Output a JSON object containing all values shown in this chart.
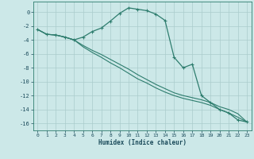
{
  "xlabel": "Humidex (Indice chaleur)",
  "background_color": "#cce8e8",
  "grid_color": "#aacccc",
  "line_color": "#2e7d6e",
  "x_values": [
    0,
    1,
    2,
    3,
    4,
    5,
    6,
    7,
    8,
    9,
    10,
    11,
    12,
    13,
    14,
    15,
    16,
    17,
    18,
    19,
    20,
    21,
    22,
    23
  ],
  "curve1_y": [
    -2.5,
    -3.2,
    -3.3,
    -3.6,
    -4.0,
    -3.6,
    -2.8,
    -2.3,
    -1.3,
    -0.2,
    0.6,
    0.4,
    0.2,
    -0.3,
    -1.2,
    -6.5,
    -8.0,
    -7.5,
    -12.0,
    -13.0,
    -14.0,
    -14.5,
    -15.5,
    -15.8
  ],
  "curve2_y": [
    -2.5,
    -3.2,
    -3.3,
    -3.6,
    -4.0,
    -4.8,
    -5.5,
    -6.1,
    -6.8,
    -7.5,
    -8.2,
    -9.0,
    -9.7,
    -10.4,
    -11.0,
    -11.6,
    -12.0,
    -12.3,
    -12.6,
    -13.0,
    -13.6,
    -14.0,
    -14.6,
    -15.8
  ],
  "curve3_y": [
    -2.5,
    -3.2,
    -3.3,
    -3.6,
    -4.0,
    -5.0,
    -5.8,
    -6.5,
    -7.3,
    -8.0,
    -8.8,
    -9.6,
    -10.2,
    -10.9,
    -11.5,
    -12.0,
    -12.4,
    -12.7,
    -13.0,
    -13.4,
    -14.0,
    -14.5,
    -15.1,
    -15.8
  ],
  "ylim": [
    -17,
    1.5
  ],
  "xlim": [
    -0.5,
    23.5
  ],
  "yticks": [
    0,
    -2,
    -4,
    -6,
    -8,
    -10,
    -12,
    -14,
    -16
  ],
  "xticks": [
    0,
    1,
    2,
    3,
    4,
    5,
    6,
    7,
    8,
    9,
    10,
    11,
    12,
    13,
    14,
    15,
    16,
    17,
    18,
    19,
    20,
    21,
    22,
    23
  ]
}
